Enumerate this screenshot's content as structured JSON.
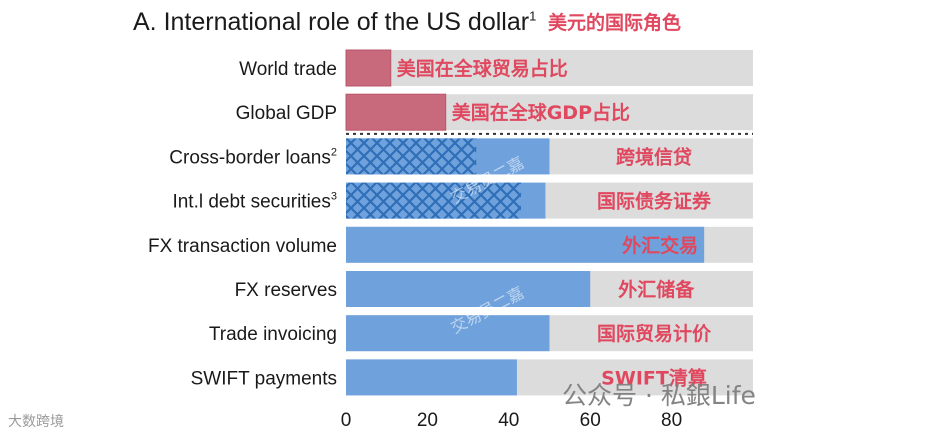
{
  "chart_data": {
    "type": "bar",
    "orientation": "horizontal",
    "title": "A. International role of the US dollar",
    "title_superscript": "1",
    "title_annotation": "美元的国际角色",
    "categories": [
      {
        "label": "World trade",
        "sup": "",
        "annotation": "美国在全球贸易占比",
        "value": 11,
        "style": "pink"
      },
      {
        "label": "Global GDP",
        "sup": "",
        "annotation": "美国在全球GDP占比",
        "value": 24.5,
        "style": "pink"
      },
      {
        "label": "Cross-border loans",
        "sup": "2",
        "annotation": "跨境信贷",
        "value": 50,
        "hatched_to": 32,
        "style": "blue-hatched"
      },
      {
        "label": "Int.l debt securities",
        "sup": "3",
        "annotation": "国际债务证券",
        "value": 49,
        "hatched_to": 43,
        "style": "blue-hatched"
      },
      {
        "label": "FX transaction volume",
        "sup": "",
        "annotation": "外汇交易",
        "value": 88,
        "style": "blue"
      },
      {
        "label": "FX reserves",
        "sup": "",
        "annotation": "外汇储备",
        "value": 60,
        "style": "blue"
      },
      {
        "label": "Trade invoicing",
        "sup": "",
        "annotation": "国际贸易计价",
        "value": 50,
        "style": "blue"
      },
      {
        "label": "SWIFT payments",
        "sup": "",
        "annotation": "SWIFT清算",
        "value": 42,
        "style": "blue"
      }
    ],
    "xlim": [
      0,
      100
    ],
    "xticks": [
      0,
      20,
      40,
      60,
      80
    ],
    "background_full_value": 100,
    "divider_after_index": 1,
    "colors": {
      "pink": "#c8697c",
      "blue": "#6fa2dc",
      "track": "#dcdcdc",
      "annotation": "#e0485f",
      "hatch": "#2e6fb8"
    },
    "legend": "none",
    "grid": false
  },
  "watermarks": {
    "center": "交易员二嘉",
    "left": "大数跨境",
    "right": "公众号 · 私銀Life"
  }
}
